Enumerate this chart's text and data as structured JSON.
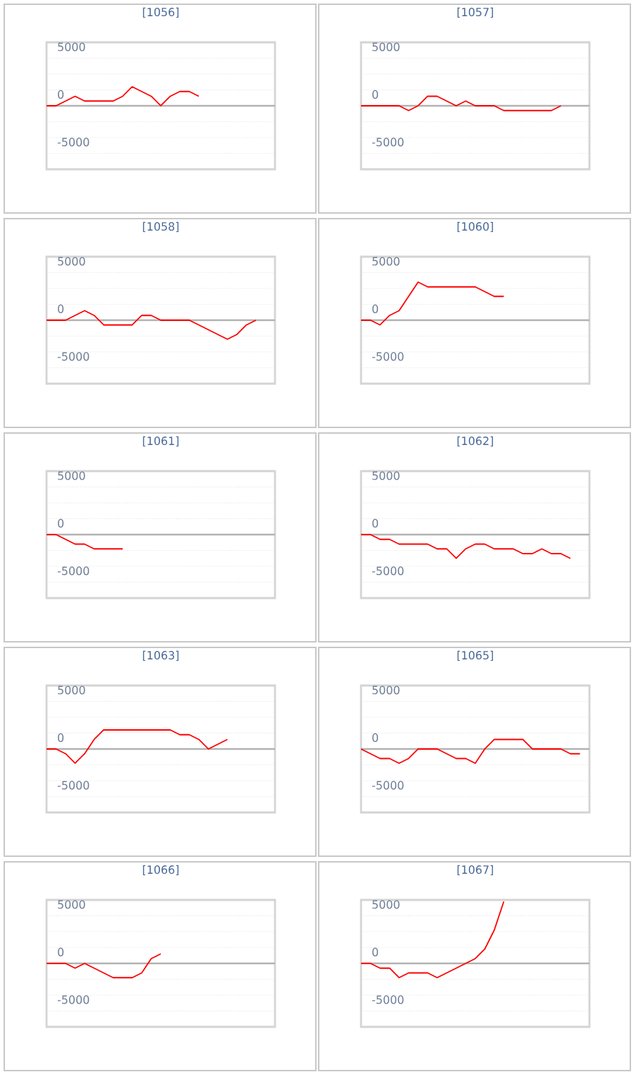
{
  "chart_data": [
    {
      "type": "line",
      "title": "[1056]",
      "categories": [
        null,
        null,
        null,
        null,
        null,
        null,
        null,
        null,
        null,
        null,
        null,
        null,
        null,
        null,
        null,
        null,
        null,
        null,
        null,
        null,
        null,
        null,
        null,
        null,
        null
      ],
      "values": [
        0,
        0,
        500,
        1000,
        500,
        500,
        500,
        500,
        1000,
        2000,
        1500,
        1000,
        0,
        1000,
        1500,
        1500,
        1000,
        null,
        null,
        null,
        null,
        null,
        null,
        null,
        null
      ],
      "color": "#ff0000",
      "marker": "none",
      "ylim": [
        -6667,
        6667
      ],
      "yticks": [
        {
          "value": -5000,
          "label": "-5000"
        },
        {
          "value": -3333,
          "label": null
        },
        {
          "value": -1667,
          "label": null
        },
        0,
        {
          "value": 1667,
          "label": null
        },
        {
          "value": 3333,
          "label": null
        },
        5000
      ],
      "grid": "y",
      "tick_labels": "y"
    },
    {
      "type": "line",
      "title": "[1057]",
      "categories": [
        null,
        null,
        null,
        null,
        null,
        null,
        null,
        null,
        null,
        null,
        null,
        null,
        null,
        null,
        null,
        null,
        null,
        null,
        null,
        null,
        null,
        null,
        null,
        null,
        null
      ],
      "values": [
        0,
        0,
        0,
        0,
        0,
        -500,
        0,
        1000,
        1000,
        500,
        0,
        500,
        0,
        0,
        0,
        -500,
        -500,
        -500,
        -500,
        -500,
        -500,
        0,
        null,
        null,
        null
      ],
      "color": "#ff0000",
      "marker": "none",
      "ylim": [
        -6667,
        6667
      ],
      "yticks": [
        {
          "value": -5000,
          "label": "-5000"
        },
        {
          "value": -3333,
          "label": null
        },
        {
          "value": -1667,
          "label": null
        },
        0,
        {
          "value": 1667,
          "label": null
        },
        {
          "value": 3333,
          "label": null
        },
        5000
      ],
      "grid": "y",
      "tick_labels": "y"
    },
    {
      "type": "line",
      "title": "[1058]",
      "categories": [
        null,
        null,
        null,
        null,
        null,
        null,
        null,
        null,
        null,
        null,
        null,
        null,
        null,
        null,
        null,
        null,
        null,
        null,
        null,
        null,
        null,
        null,
        null,
        null,
        null
      ],
      "values": [
        0,
        0,
        0,
        500,
        1000,
        500,
        -500,
        -500,
        -500,
        -500,
        500,
        500,
        0,
        0,
        0,
        0,
        -500,
        -1000,
        -1500,
        -2000,
        -1500,
        -500,
        0,
        null,
        null
      ],
      "color": "#ff0000",
      "marker": "none",
      "ylim": [
        -6667,
        6667
      ],
      "yticks": [
        {
          "value": -5000,
          "label": "-5000"
        },
        {
          "value": -3333,
          "label": null
        },
        {
          "value": -1667,
          "label": null
        },
        0,
        {
          "value": 1667,
          "label": null
        },
        {
          "value": 3333,
          "label": null
        },
        5000
      ],
      "grid": "y",
      "tick_labels": "y"
    },
    {
      "type": "line",
      "title": "[1060]",
      "categories": [
        null,
        null,
        null,
        null,
        null,
        null,
        null,
        null,
        null,
        null,
        null,
        null,
        null,
        null,
        null,
        null,
        null,
        null,
        null,
        null,
        null,
        null,
        null,
        null,
        null
      ],
      "values": [
        0,
        0,
        -500,
        500,
        1000,
        2500,
        4000,
        3500,
        3500,
        3500,
        3500,
        3500,
        3500,
        3000,
        2500,
        2500,
        null,
        null,
        null,
        null,
        null,
        null,
        null,
        null,
        null
      ],
      "color": "#ff0000",
      "marker": "none",
      "ylim": [
        -6667,
        6667
      ],
      "yticks": [
        {
          "value": -5000,
          "label": "-5000"
        },
        {
          "value": -3333,
          "label": null
        },
        {
          "value": -1667,
          "label": null
        },
        0,
        {
          "value": 1667,
          "label": null
        },
        {
          "value": 3333,
          "label": null
        },
        5000
      ],
      "grid": "y",
      "tick_labels": "y"
    },
    {
      "type": "line",
      "title": "[1061]",
      "categories": [
        null,
        null,
        null,
        null,
        null,
        null,
        null,
        null,
        null,
        null,
        null,
        null,
        null,
        null,
        null,
        null,
        null,
        null,
        null,
        null,
        null,
        null,
        null,
        null,
        null
      ],
      "values": [
        0,
        0,
        -500,
        -1000,
        -1000,
        -1500,
        -1500,
        -1500,
        -1500,
        null,
        null,
        null,
        null,
        null,
        null,
        null,
        null,
        null,
        null,
        null,
        null,
        null,
        null,
        null,
        null
      ],
      "color": "#ff0000",
      "marker": "none",
      "ylim": [
        -6667,
        6667
      ],
      "yticks": [
        {
          "value": -5000,
          "label": "-5000"
        },
        {
          "value": -3333,
          "label": null
        },
        {
          "value": -1667,
          "label": null
        },
        0,
        {
          "value": 1667,
          "label": null
        },
        {
          "value": 3333,
          "label": null
        },
        5000
      ],
      "grid": "y",
      "tick_labels": "y"
    },
    {
      "type": "line",
      "title": "[1062]",
      "categories": [
        null,
        null,
        null,
        null,
        null,
        null,
        null,
        null,
        null,
        null,
        null,
        null,
        null,
        null,
        null,
        null,
        null,
        null,
        null,
        null,
        null,
        null,
        null,
        null,
        null
      ],
      "values": [
        0,
        0,
        -500,
        -500,
        -1000,
        -1000,
        -1000,
        -1000,
        -1500,
        -1500,
        -2500,
        -1500,
        -1000,
        -1000,
        -1500,
        -1500,
        -1500,
        -2000,
        -2000,
        -1500,
        -2000,
        -2000,
        -2500,
        null,
        null
      ],
      "color": "#ff0000",
      "marker": "none",
      "ylim": [
        -6667,
        6667
      ],
      "yticks": [
        {
          "value": -5000,
          "label": "-5000"
        },
        {
          "value": -3333,
          "label": null
        },
        {
          "value": -1667,
          "label": null
        },
        0,
        {
          "value": 1667,
          "label": null
        },
        {
          "value": 3333,
          "label": null
        },
        5000
      ],
      "grid": "y",
      "tick_labels": "y"
    },
    {
      "type": "line",
      "title": "[1063]",
      "categories": [
        null,
        null,
        null,
        null,
        null,
        null,
        null,
        null,
        null,
        null,
        null,
        null,
        null,
        null,
        null,
        null,
        null,
        null,
        null,
        null,
        null,
        null,
        null,
        null,
        null
      ],
      "values": [
        0,
        0,
        -500,
        -1500,
        -500,
        1000,
        2000,
        2000,
        2000,
        2000,
        2000,
        2000,
        2000,
        2000,
        1500,
        1500,
        1000,
        0,
        500,
        1000,
        null,
        null,
        null,
        null,
        null
      ],
      "color": "#ff0000",
      "marker": "none",
      "ylim": [
        -6667,
        6667
      ],
      "yticks": [
        {
          "value": -5000,
          "label": "-5000"
        },
        {
          "value": -3333,
          "label": null
        },
        {
          "value": -1667,
          "label": null
        },
        0,
        {
          "value": 1667,
          "label": null
        },
        {
          "value": 3333,
          "label": null
        },
        5000
      ],
      "grid": "y",
      "tick_labels": "y"
    },
    {
      "type": "line",
      "title": "[1065]",
      "categories": [
        null,
        null,
        null,
        null,
        null,
        null,
        null,
        null,
        null,
        null,
        null,
        null,
        null,
        null,
        null,
        null,
        null,
        null,
        null,
        null,
        null,
        null,
        null,
        null,
        null
      ],
      "values": [
        0,
        -500,
        -1000,
        -1000,
        -1500,
        -1000,
        0,
        0,
        0,
        -500,
        -1000,
        -1000,
        -1500,
        0,
        1000,
        1000,
        1000,
        1000,
        0,
        0,
        0,
        0,
        -500,
        -500,
        null
      ],
      "color": "#ff0000",
      "marker": "none",
      "ylim": [
        -6667,
        6667
      ],
      "yticks": [
        {
          "value": -5000,
          "label": "-5000"
        },
        {
          "value": -3333,
          "label": null
        },
        {
          "value": -1667,
          "label": null
        },
        0,
        {
          "value": 1667,
          "label": null
        },
        {
          "value": 3333,
          "label": null
        },
        5000
      ],
      "grid": "y",
      "tick_labels": "y"
    },
    {
      "type": "line",
      "title": "[1066]",
      "categories": [
        null,
        null,
        null,
        null,
        null,
        null,
        null,
        null,
        null,
        null,
        null,
        null,
        null,
        null,
        null,
        null,
        null,
        null,
        null,
        null,
        null,
        null,
        null,
        null,
        null
      ],
      "values": [
        0,
        0,
        0,
        -500,
        0,
        -500,
        -1000,
        -1500,
        -1500,
        -1500,
        -1000,
        500,
        1000,
        null,
        null,
        null,
        null,
        null,
        null,
        null,
        null,
        null,
        null,
        null,
        null
      ],
      "color": "#ff0000",
      "marker": "none",
      "ylim": [
        -6667,
        6667
      ],
      "yticks": [
        {
          "value": -5000,
          "label": "-5000"
        },
        {
          "value": -3333,
          "label": null
        },
        {
          "value": -1667,
          "label": null
        },
        0,
        {
          "value": 1667,
          "label": null
        },
        {
          "value": 3333,
          "label": null
        },
        5000
      ],
      "grid": "y",
      "tick_labels": "y"
    },
    {
      "type": "line",
      "title": "[1067]",
      "categories": [
        null,
        null,
        null,
        null,
        null,
        null,
        null,
        null,
        null,
        null,
        null,
        null,
        null,
        null,
        null,
        null,
        null,
        null,
        null,
        null,
        null,
        null,
        null,
        null,
        null
      ],
      "values": [
        0,
        0,
        -500,
        -500,
        -1500,
        -1000,
        -1000,
        -1000,
        -1500,
        -1000,
        -500,
        0,
        500,
        1500,
        3500,
        6500,
        null,
        null,
        null,
        null,
        null,
        null,
        null,
        null,
        null
      ],
      "color": "#ff0000",
      "marker": "none",
      "ylim": [
        -6667,
        6667
      ],
      "yticks": [
        {
          "value": -5000,
          "label": "-5000"
        },
        {
          "value": -3333,
          "label": null
        },
        {
          "value": -1667,
          "label": null
        },
        0,
        {
          "value": 1667,
          "label": null
        },
        {
          "value": 3333,
          "label": null
        },
        5000
      ],
      "grid": "y",
      "tick_labels": "y"
    }
  ]
}
